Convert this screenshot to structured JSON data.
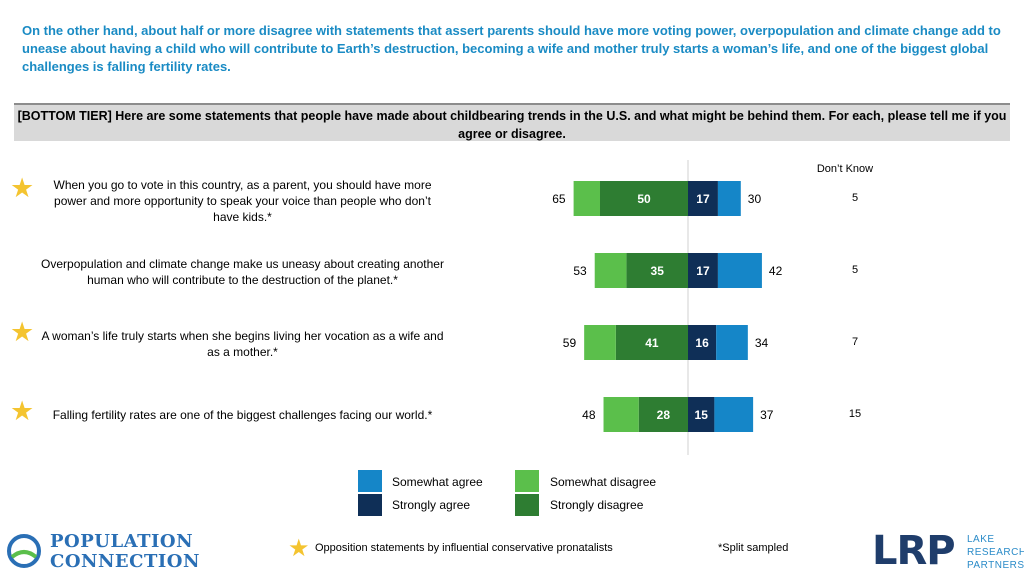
{
  "title": "On the other hand, about half or more disagree with statements that assert parents should have more voting power, overpopulation and climate change add to unease about having a child who will contribute to Earth’s destruction, becoming a wife and mother truly starts a woman’s life, and one of the biggest global challenges is falling fertility rates.",
  "question": "[BOTTOM TIER] Here are some statements that people have made about childbearing trends in the U.S. and what might be behind them. For each, please tell me if you agree or disagree.",
  "dont_know_header": "Don’t Know",
  "colors": {
    "somewhat_agree": "#1586c8",
    "strongly_agree": "#0f2f57",
    "somewhat_disagree": "#5bbf4b",
    "strongly_disagree": "#2e7d32",
    "star": "#f4c430",
    "title": "#1a8bc4"
  },
  "chart_data": {
    "type": "bar",
    "orientation": "horizontal-diverging",
    "title": "",
    "categories": [
      "When you go to vote in this country, as a parent, you should have more power and more opportunity to speak your voice than people who don’t have kids.*",
      "Overpopulation and climate change make us uneasy about creating another human who will contribute to the destruction of the planet.*",
      "A woman’s life truly starts when she begins living her vocation as a wife and as a mother.*",
      "Falling fertility rates are one of the biggest challenges facing our world.*"
    ],
    "starred": [
      true,
      false,
      true,
      true
    ],
    "series": [
      {
        "name": "Strongly disagree",
        "values": [
          50,
          35,
          41,
          28
        ]
      },
      {
        "name": "Somewhat disagree",
        "values": [
          15,
          18,
          18,
          20
        ]
      },
      {
        "name": "Strongly agree",
        "values": [
          17,
          17,
          16,
          15
        ]
      },
      {
        "name": "Somewhat agree",
        "values": [
          13,
          25,
          18,
          22
        ]
      }
    ],
    "total_disagree": [
      65,
      53,
      59,
      48
    ],
    "total_agree": [
      30,
      42,
      34,
      37
    ],
    "dont_know": [
      5,
      5,
      7,
      15
    ]
  },
  "legend": {
    "somewhat_agree": "Somewhat agree",
    "strongly_agree": "Strongly agree",
    "somewhat_disagree": "Somewhat disagree",
    "strongly_disagree": "Strongly disagree"
  },
  "footer": {
    "star_note": "Opposition statements by influential conservative pronatalists",
    "split_note": "*Split sampled"
  },
  "logos": {
    "pc_line1": "POPULATION",
    "pc_line2": "CONNECTION",
    "lrp": "LRP",
    "lrp_sub1": "LAKE",
    "lrp_sub2": "RESEARCH",
    "lrp_sub3": "PARTNERS"
  }
}
